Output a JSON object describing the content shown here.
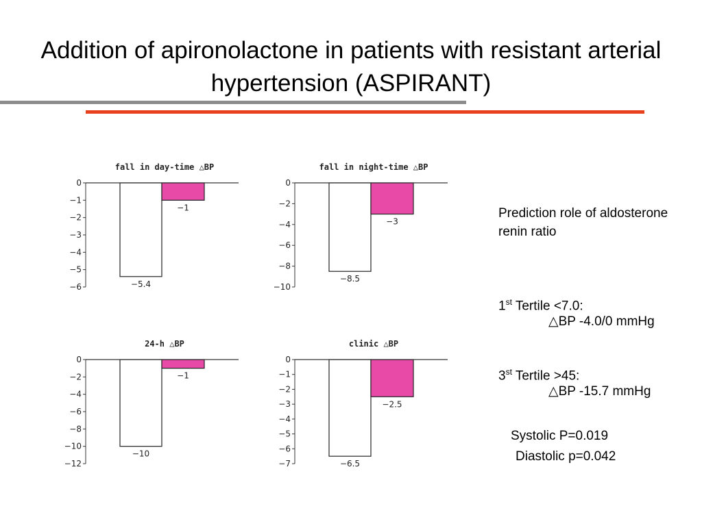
{
  "slide": {
    "title": "Addition of apironolactone in patients with resistant arterial hypertension (ASPIRANT)"
  },
  "side_panel": {
    "prediction_heading": "Prediction role of aldosterone renin ratio",
    "tertile1": {
      "ordinal": "1",
      "suffix": "st",
      "label": " Tertile <7.0:",
      "value": "△BP -4.0/0 mmHg"
    },
    "tertile3": {
      "ordinal": "3",
      "suffix": "st",
      "label": " Tertile >45:",
      "value": "△BP -15.7 mmHg"
    },
    "systolic": "Systolic P=0.019",
    "diastolic": "Diastolic  p=0.042"
  },
  "colors": {
    "placebo_bar": "#ffffff",
    "treatment_bar": "#e84aa8",
    "gray_rule": "#8c8c8c",
    "red_rule": "#e8401c"
  },
  "chart_data": [
    {
      "id": "day",
      "type": "bar",
      "title": "fall in day-time △BP",
      "ylim": [
        -6,
        0
      ],
      "yticks": [
        0,
        -1,
        -2,
        -3,
        -4,
        -5,
        -6
      ],
      "values": [
        -5.4,
        -1
      ],
      "value_labels": [
        "−5.4",
        "−1"
      ]
    },
    {
      "id": "night",
      "type": "bar",
      "title": "fall in night-time △BP",
      "ylim": [
        -10,
        0
      ],
      "yticks": [
        0,
        -2,
        -4,
        -6,
        -8,
        -10
      ],
      "values": [
        -8.5,
        -3
      ],
      "value_labels": [
        "−8.5",
        "−3"
      ]
    },
    {
      "id": "24h",
      "type": "bar",
      "title": "24-h △BP",
      "ylim": [
        -12,
        0
      ],
      "yticks": [
        0,
        -2,
        -4,
        -6,
        -8,
        -10,
        -12
      ],
      "values": [
        -10,
        -1
      ],
      "value_labels": [
        "−10",
        "−1"
      ]
    },
    {
      "id": "clinic",
      "type": "bar",
      "title": "clinic △BP",
      "ylim": [
        -7,
        0
      ],
      "yticks": [
        0,
        -1,
        -2,
        -3,
        -4,
        -5,
        -6,
        -7
      ],
      "values": [
        -6.5,
        -2.5
      ],
      "value_labels": [
        "−6.5",
        "−2.5"
      ]
    }
  ]
}
